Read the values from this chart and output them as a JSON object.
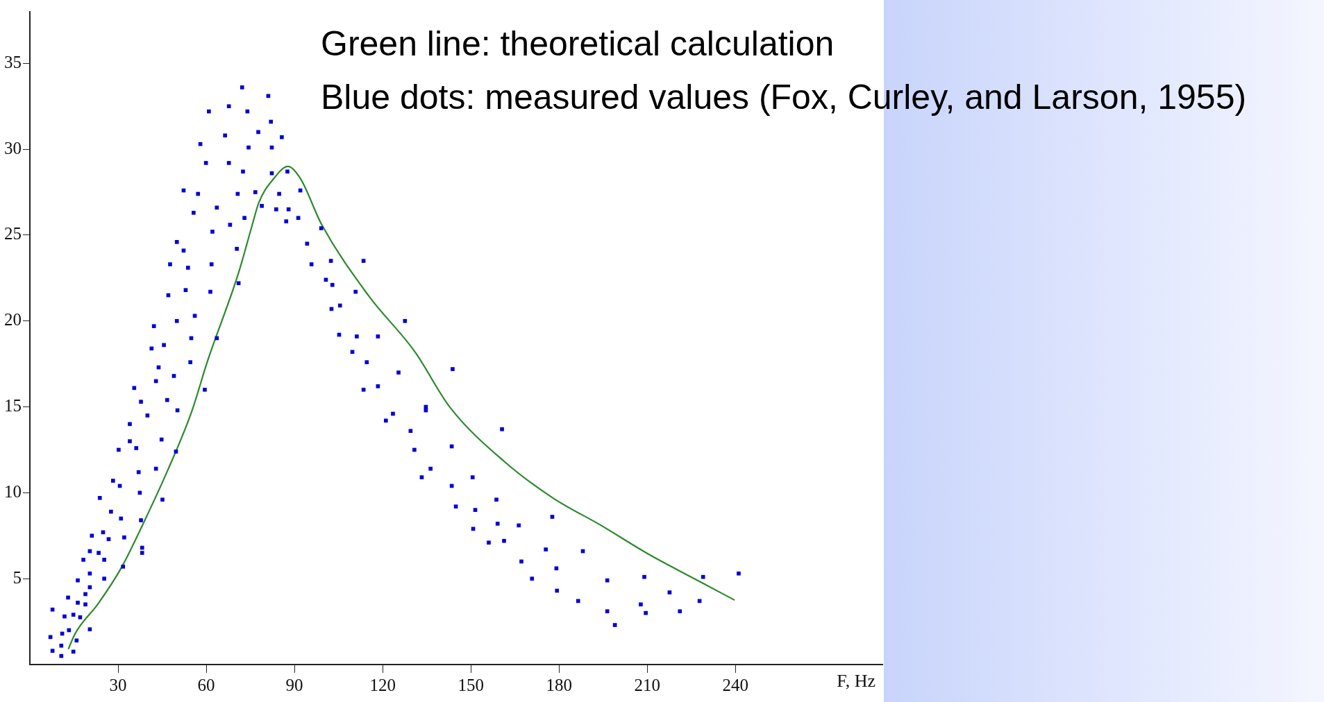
{
  "chart_data": {
    "type": "scatter",
    "annotations": [
      "Green line: theoretical calculation",
      "Blue dots: measured values (Fox, Curley, and Larson, 1955)"
    ],
    "xlabel": "F, Hz",
    "xlim": [
      0,
      290
    ],
    "xticks": [
      30,
      60,
      90,
      120,
      150,
      180,
      210,
      240
    ],
    "ylim": [
      0,
      38
    ],
    "yticks": [
      5,
      10,
      15,
      20,
      25,
      30,
      35
    ],
    "marker": "square",
    "series": [
      {
        "color": "#0000d8",
        "x": [
          7.7,
          7.0,
          7.7,
          10.7,
          10.7,
          11.0,
          11.8,
          13.0,
          13.3,
          14.8,
          14.8,
          15.9,
          16.3,
          16.3,
          17.1,
          18.2,
          18.9,
          18.9,
          20.4,
          20.4,
          20.4,
          20.4,
          21.1,
          23.4,
          23.8,
          24.9,
          25.3,
          25.3,
          26.8,
          27.6,
          28.3,
          30.2,
          30.6,
          31.0,
          31.7,
          32.1,
          34.0,
          34.0,
          35.5,
          36.2,
          37.0,
          37.4,
          37.8,
          37.8,
          38.2,
          38.2,
          40.0,
          42.9,
          42.9,
          43.8,
          44.8,
          45.1,
          46.7,
          49.0,
          49.7,
          50.2,
          54.6,
          59.5,
          41.4,
          42.2,
          45.6,
          47.1,
          47.7,
          50.0,
          50.0,
          52.3,
          52.3,
          53.0,
          53.8,
          54.9,
          55.7,
          56.1,
          57.2,
          58.0,
          59.9,
          60.9,
          61.4,
          61.8,
          62.1,
          63.6,
          63.6,
          66.4,
          67.7,
          67.7,
          68.1,
          70.4,
          70.7,
          71.0,
          72.2,
          72.5,
          73.0,
          74.0,
          74.4,
          76.7,
          77.7,
          78.9,
          81.1,
          82.0,
          82.3,
          82.3,
          83.8,
          84.8,
          85.7,
          87.2,
          87.6,
          88.0,
          91.3,
          92.0,
          94.3,
          95.8,
          99.1,
          100.7,
          102.4,
          102.6,
          102.9,
          105.2,
          105.5,
          109.7,
          110.8,
          111.2,
          113.5,
          113.5,
          114.6,
          118.4,
          118.4,
          121.1,
          123.5,
          125.4,
          127.6,
          129.5,
          130.8,
          133.3,
          134.7,
          134.7,
          136.3,
          143.5,
          143.5,
          143.8,
          144.9,
          150.6,
          150.8,
          151.5,
          156.1,
          158.7,
          159.1,
          160.6,
          161.3,
          166.3,
          167.2,
          170.8,
          175.5,
          177.7,
          179.1,
          179.3,
          186.5,
          188.1,
          196.4,
          196.4,
          199.0,
          207.8,
          209.0,
          209.5,
          217.6,
          221.1,
          227.8,
          229.0,
          241.1
        ],
        "values": [
          0.8,
          1.6,
          3.2,
          0.5,
          1.1,
          1.8,
          2.8,
          3.9,
          2.0,
          0.75,
          2.9,
          1.4,
          3.6,
          4.9,
          2.75,
          6.1,
          3.5,
          4.1,
          2.05,
          4.5,
          5.3,
          6.6,
          7.5,
          6.5,
          9.7,
          7.7,
          5.0,
          6.1,
          7.3,
          8.9,
          10.7,
          12.5,
          10.4,
          8.5,
          5.7,
          7.4,
          13.0,
          14.0,
          16.1,
          12.6,
          11.2,
          10.0,
          8.4,
          15.3,
          6.5,
          6.8,
          14.5,
          11.4,
          16.5,
          17.3,
          13.1,
          9.6,
          15.4,
          16.8,
          12.4,
          14.8,
          17.6,
          16.0,
          18.4,
          19.7,
          18.6,
          21.5,
          23.3,
          20.0,
          24.6,
          24.1,
          27.6,
          21.8,
          23.1,
          19.0,
          26.3,
          20.3,
          27.4,
          30.3,
          29.2,
          32.2,
          21.7,
          23.3,
          25.2,
          19.0,
          26.6,
          30.8,
          32.5,
          29.2,
          25.6,
          24.2,
          27.4,
          22.2,
          33.6,
          28.7,
          26.0,
          32.2,
          30.1,
          27.5,
          31.0,
          26.7,
          33.1,
          31.6,
          30.1,
          28.6,
          26.5,
          27.4,
          30.7,
          25.8,
          28.7,
          26.5,
          26.0,
          27.6,
          24.5,
          23.3,
          25.4,
          22.4,
          23.5,
          20.7,
          22.1,
          19.2,
          20.9,
          18.2,
          21.7,
          19.1,
          16.0,
          23.5,
          17.6,
          16.2,
          19.1,
          14.2,
          14.6,
          17.0,
          20.0,
          13.6,
          12.5,
          10.9,
          14.8,
          15.0,
          11.4,
          12.7,
          10.4,
          17.2,
          9.2,
          10.9,
          7.9,
          9.0,
          7.1,
          9.6,
          8.2,
          13.7,
          7.2,
          8.1,
          6.0,
          5.0,
          6.7,
          8.6,
          5.6,
          4.3,
          3.7,
          6.6,
          4.9,
          3.1,
          2.3,
          3.5,
          5.1,
          3.0,
          4.2,
          3.1,
          3.7,
          5.1,
          5.3
        ]
      },
      {
        "type": "line",
        "color": "#2a8a2a",
        "marker": "none",
        "x": [
          13.1,
          15.4,
          23.3,
          31.2,
          39.1,
          47.0,
          54.9,
          60.5,
          70.8,
          75.5,
          77.9,
          83.0,
          87.8,
          92.0,
          99.3,
          115.1,
          131.0,
          142.8,
          161.5,
          177.9,
          194.3,
          210.7,
          227.1,
          239.7
        ],
        "values": [
          0.9,
          1.8,
          3.56,
          5.66,
          8.4,
          11.35,
          14.65,
          17.7,
          22.7,
          25.5,
          26.9,
          28.3,
          29.0,
          28.3,
          25.6,
          21.5,
          18.2,
          15.0,
          11.8,
          9.7,
          8.1,
          6.4,
          4.9,
          3.75
        ]
      }
    ]
  }
}
